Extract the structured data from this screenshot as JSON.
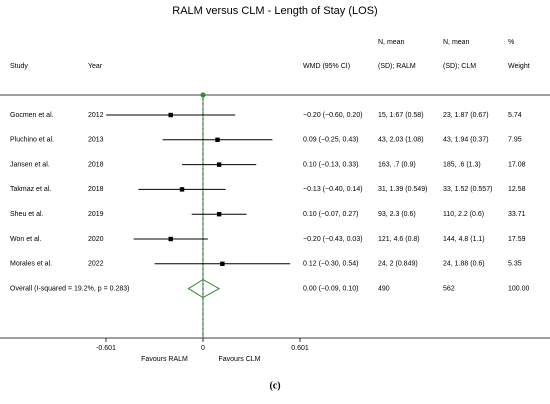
{
  "chart_data": {
    "type": "forest",
    "title": "RALM versus CLM - Length of Stay (LOS)",
    "columns": {
      "study": "Study",
      "year": "Year",
      "wmd": "WMD (95% CI)",
      "ralm": [
        "N, mean",
        "(SD); RALM"
      ],
      "clm": [
        "N, mean",
        "(SD); CLM"
      ],
      "weight": [
        "%",
        "Weight"
      ]
    },
    "categories": [
      "Gocmen et al.",
      "Pluchino et al.",
      "Jansen et al.",
      "Takmaz et al.",
      "Sheu et al.",
      "Won et al.",
      "Morales et al."
    ],
    "years": [
      2012,
      2013,
      2018,
      2018,
      2019,
      2020,
      2022
    ],
    "values": [
      -0.2,
      0.09,
      0.1,
      -0.13,
      0.1,
      -0.2,
      0.12
    ],
    "ci_low": [
      -0.6,
      -0.25,
      -0.13,
      -0.4,
      -0.07,
      -0.43,
      -0.3
    ],
    "ci_high": [
      0.2,
      0.43,
      0.33,
      0.14,
      0.27,
      0.03,
      0.54
    ],
    "value_labels": [
      "−0.20 (−0.60, 0.20)",
      "0.09 (−0.25, 0.43)",
      "0.10 (−0.13, 0.33)",
      "−0.13 (−0.40, 0.14)",
      "0.10 (−0.07, 0.27)",
      "−0.20 (−0.43, 0.03)",
      "0.12 (−0.30, 0.54)"
    ],
    "ralm": [
      "15, 1.67 (0.58)",
      "43, 2.03 (1.08)",
      "163, .7 (0.9)",
      "31, 1.39 (0.549)",
      "93, 2.3 (0.6)",
      "121, 4.6 (0.8)",
      "24, 2 (0.849)"
    ],
    "clm": [
      "23, 1.87 (0.67)",
      "43, 1.94 (0.37)",
      "185, .6 (1.3)",
      "33, 1.52 (0.557)",
      "110, 2.2 (0.6)",
      "144, 4.8 (1.1)",
      "24, 1.88 (0.6)"
    ],
    "weights": [
      5.74,
      7.95,
      17.08,
      12.58,
      33.71,
      17.59,
      5.35
    ],
    "overall": {
      "label": "Overall  (I-squared = 19.2%, p = 0.283)",
      "value": 0,
      "ci_low": -0.09,
      "ci_high": 0.1,
      "value_label": "0.00 (−0.09, 0.10)",
      "ralm": 490,
      "clm": 562,
      "weight": {
        "value": 100,
        "label": "100.00"
      }
    },
    "xlim": [
      -0.601,
      0.601
    ],
    "xticks": [
      -0.601,
      0,
      0.601
    ],
    "xlabels": [
      "Favours RALM",
      "Favours CLM"
    ],
    "color": "#000000",
    "overall_color": "#2e8b2e",
    "caption": "(c)"
  }
}
